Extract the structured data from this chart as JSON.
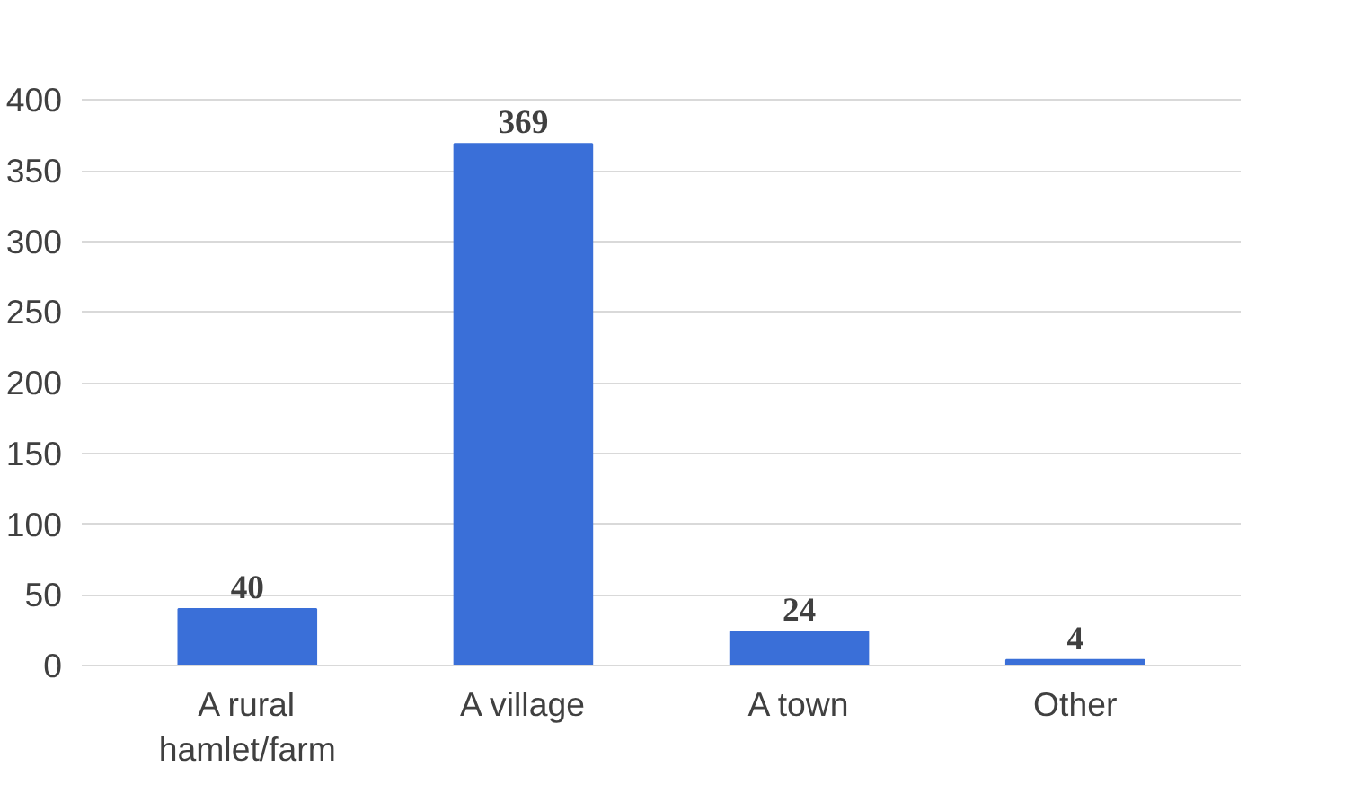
{
  "chart_data": {
    "type": "bar",
    "categories": [
      "A rural hamlet/farm",
      "A village",
      "A town",
      "Other"
    ],
    "values": [
      40,
      369,
      24,
      4
    ],
    "color": "#3a6fd8",
    "ylim": [
      0,
      400
    ],
    "yticks": [
      0,
      50,
      100,
      150,
      200,
      250,
      300,
      350,
      400
    ],
    "grid": "y",
    "data_labels": true
  }
}
